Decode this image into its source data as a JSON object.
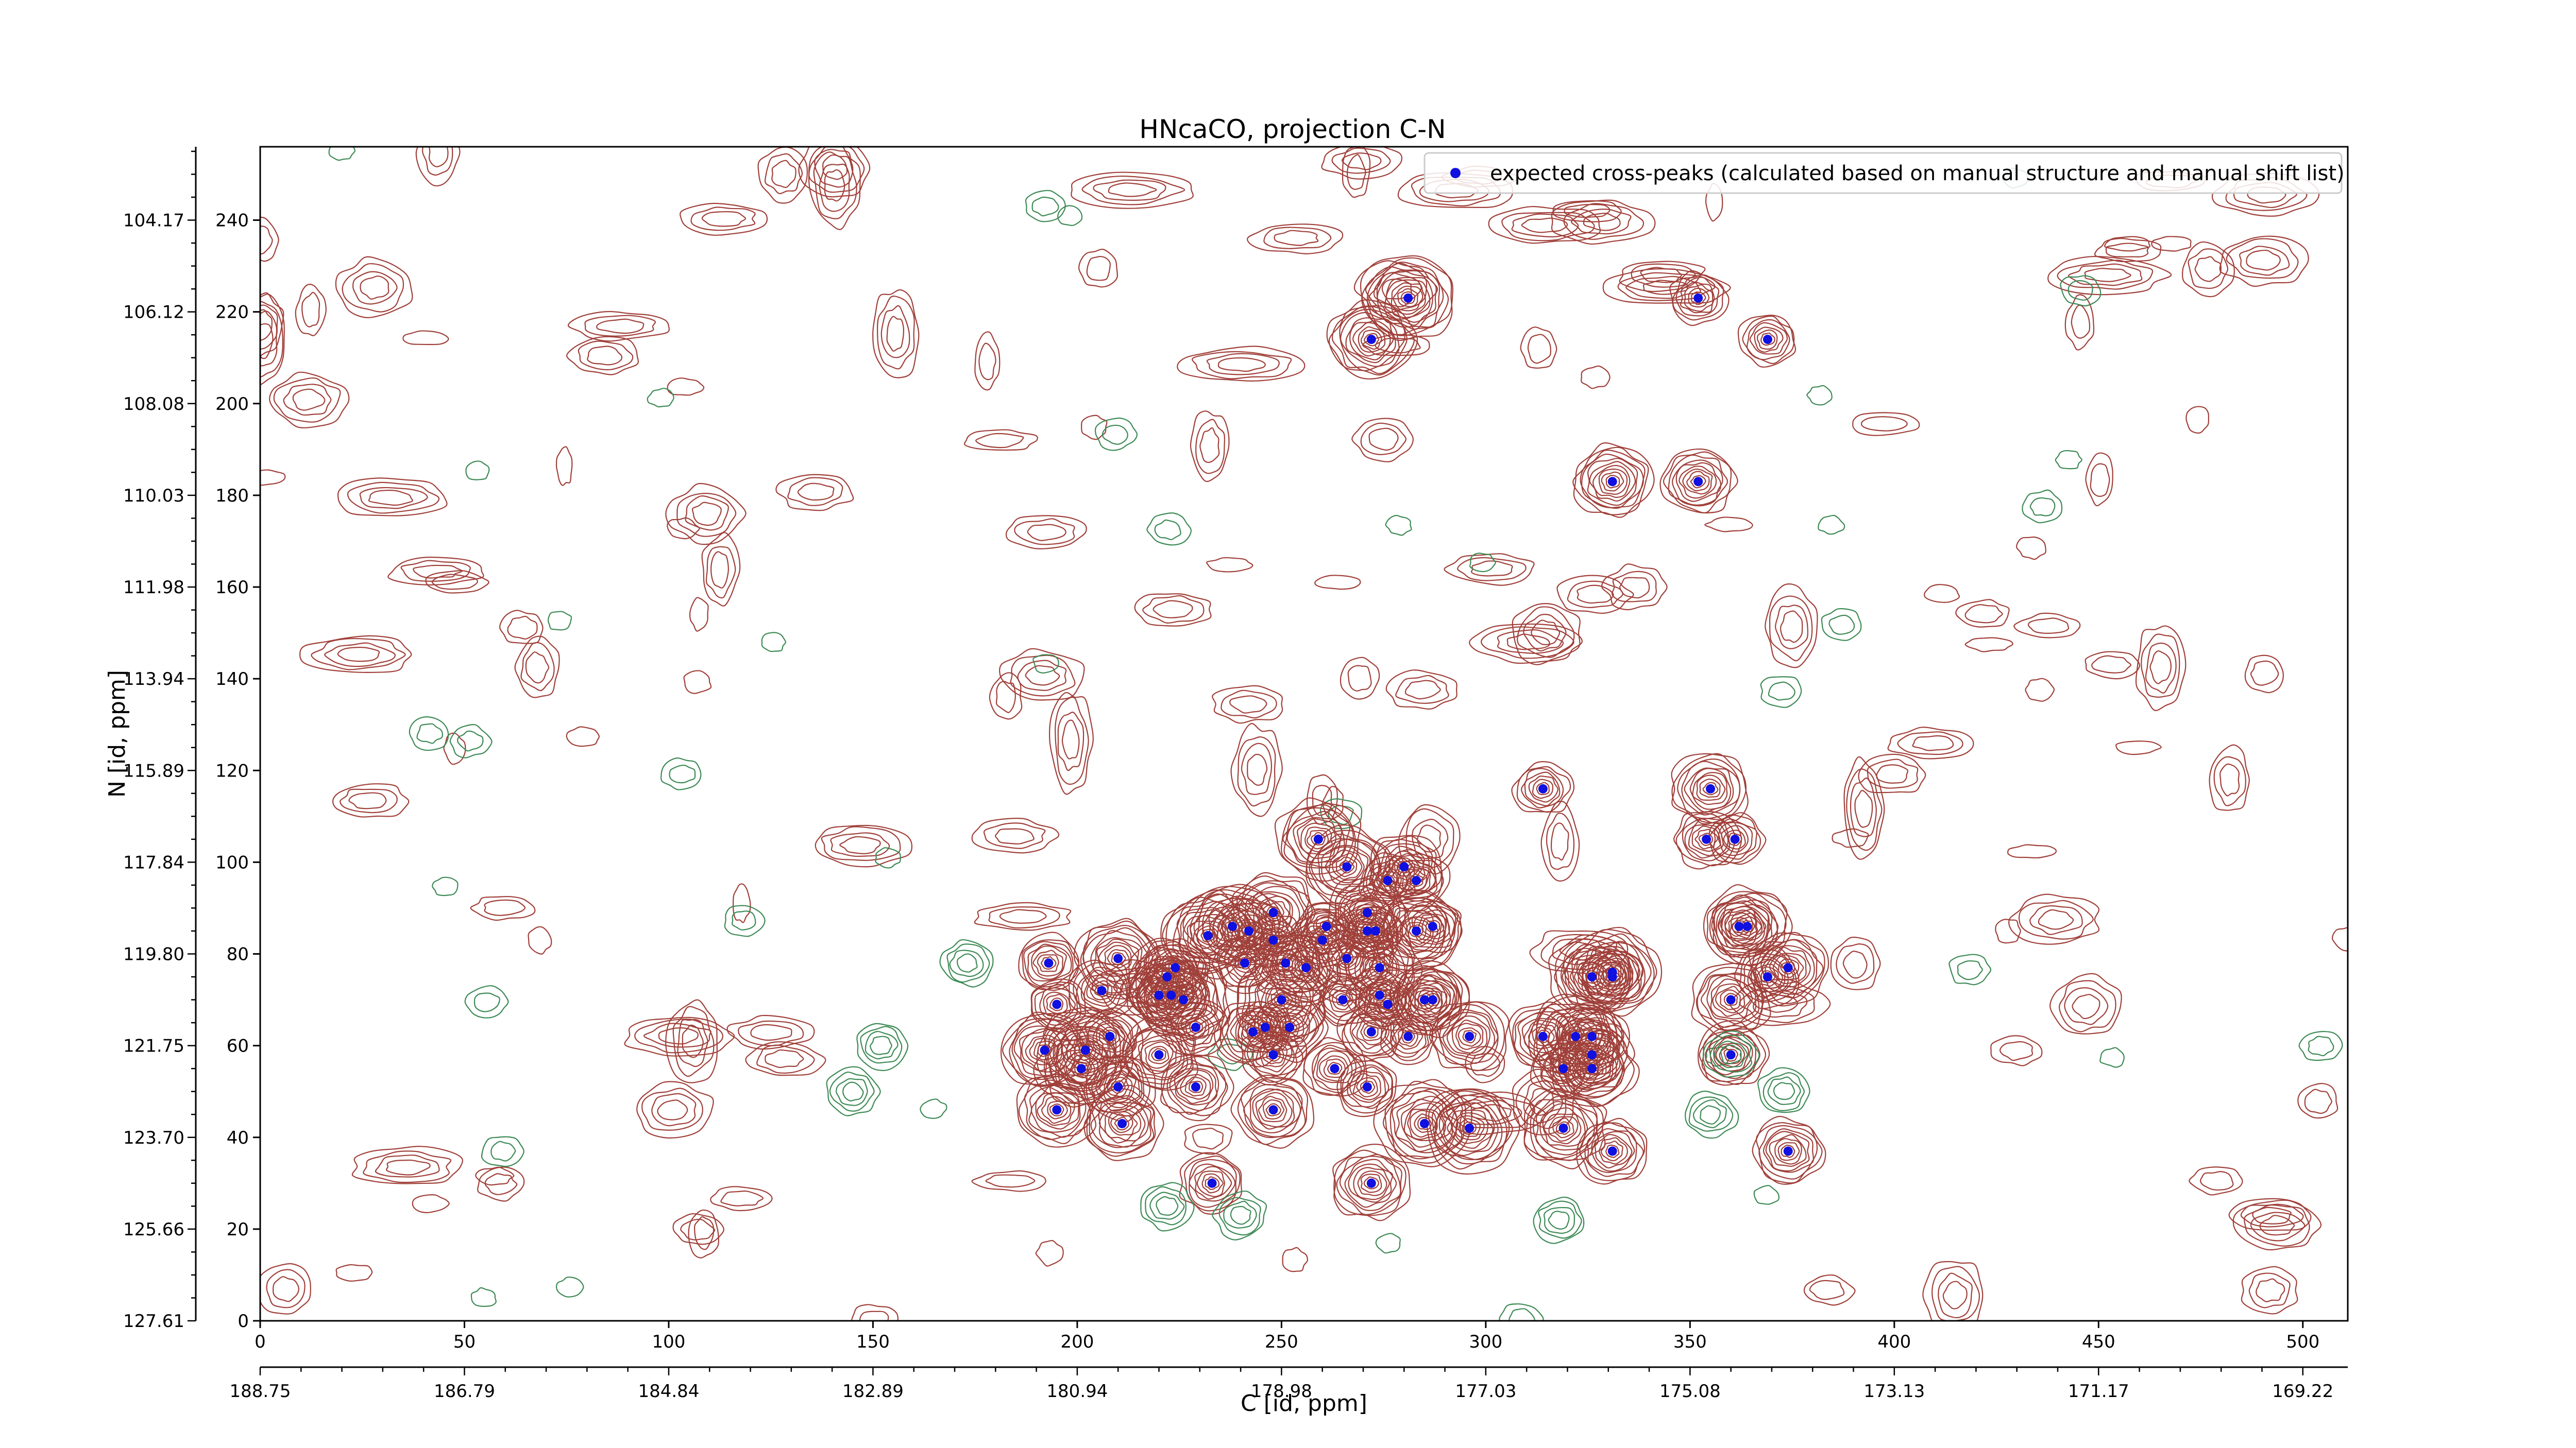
{
  "chart_data": {
    "type": "scatter",
    "title": "HNcaCO, projection C-N",
    "xlabel": "C [id, ppm]",
    "ylabel": "N [id, ppm]",
    "xlim": [
      0,
      511
    ],
    "ylim": [
      0,
      256
    ],
    "x_ticks": [
      0,
      50,
      100,
      150,
      200,
      250,
      300,
      350,
      400,
      450,
      500
    ],
    "y_ticks": [
      0,
      20,
      40,
      60,
      80,
      100,
      120,
      140,
      160,
      180,
      200,
      220,
      240
    ],
    "x_ppm_tick_labels": [
      "188.75",
      "186.79",
      "184.84",
      "182.89",
      "180.94",
      "178.98",
      "177.03",
      "175.08",
      "173.13",
      "171.17",
      "169.22"
    ],
    "y_ppm_tick_labels": [
      "127.61",
      "125.66",
      "123.70",
      "121.75",
      "119.80",
      "117.84",
      "115.89",
      "113.94",
      "111.98",
      "110.03",
      "108.08",
      "106.12",
      "104.17"
    ],
    "legend": {
      "position": "top-right",
      "label": "expected cross-peaks (calculated based on manual structure and manual shift list)"
    },
    "contour_colors": {
      "positive": "#a0403a",
      "negative": "#3d8a55"
    },
    "series": [
      {
        "name": "expected cross-peaks (calculated based on manual structure and manual shift list)",
        "color": "#1010e0",
        "points": [
          [
            272,
            214
          ],
          [
            281,
            223
          ],
          [
            352,
            223
          ],
          [
            369,
            214
          ],
          [
            331,
            183
          ],
          [
            352,
            183
          ],
          [
            314,
            116
          ],
          [
            355,
            116
          ],
          [
            354,
            105
          ],
          [
            361,
            105
          ],
          [
            259,
            105
          ],
          [
            266,
            99
          ],
          [
            276,
            96
          ],
          [
            280,
            99
          ],
          [
            283,
            96
          ],
          [
            238,
            86
          ],
          [
            248,
            89
          ],
          [
            248,
            83
          ],
          [
            261,
            86
          ],
          [
            260,
            83
          ],
          [
            271,
            89
          ],
          [
            271,
            85
          ],
          [
            273,
            85
          ],
          [
            232,
            84
          ],
          [
            242,
            85
          ],
          [
            256,
            77
          ],
          [
            266,
            79
          ],
          [
            283,
            85
          ],
          [
            287,
            86
          ],
          [
            193,
            78
          ],
          [
            210,
            79
          ],
          [
            224,
            77
          ],
          [
            222,
            75
          ],
          [
            241,
            78
          ],
          [
            251,
            78
          ],
          [
            274,
            77
          ],
          [
            362,
            86
          ],
          [
            364,
            86
          ],
          [
            374,
            77
          ],
          [
            369,
            75
          ],
          [
            326,
            75
          ],
          [
            331,
            76
          ],
          [
            331,
            75
          ],
          [
            360,
            70
          ],
          [
            195,
            69
          ],
          [
            206,
            72
          ],
          [
            220,
            71
          ],
          [
            223,
            71
          ],
          [
            226,
            70
          ],
          [
            250,
            70
          ],
          [
            265,
            70
          ],
          [
            274,
            71
          ],
          [
            276,
            69
          ],
          [
            285,
            70
          ],
          [
            287,
            70
          ],
          [
            192,
            59
          ],
          [
            202,
            59
          ],
          [
            208,
            62
          ],
          [
            229,
            64
          ],
          [
            243,
            63
          ],
          [
            246,
            64
          ],
          [
            252,
            64
          ],
          [
            272,
            63
          ],
          [
            281,
            62
          ],
          [
            296,
            62
          ],
          [
            314,
            62
          ],
          [
            322,
            62
          ],
          [
            326,
            62
          ],
          [
            326,
            58
          ],
          [
            201,
            55
          ],
          [
            220,
            58
          ],
          [
            248,
            58
          ],
          [
            263,
            55
          ],
          [
            319,
            55
          ],
          [
            326,
            55
          ],
          [
            360,
            58
          ],
          [
            195,
            46
          ],
          [
            210,
            51
          ],
          [
            229,
            51
          ],
          [
            248,
            46
          ],
          [
            271,
            51
          ],
          [
            319,
            42
          ],
          [
            331,
            37
          ],
          [
            211,
            43
          ],
          [
            285,
            43
          ],
          [
            296,
            42
          ],
          [
            233,
            30
          ],
          [
            272,
            30
          ],
          [
            374,
            37
          ]
        ]
      }
    ]
  }
}
